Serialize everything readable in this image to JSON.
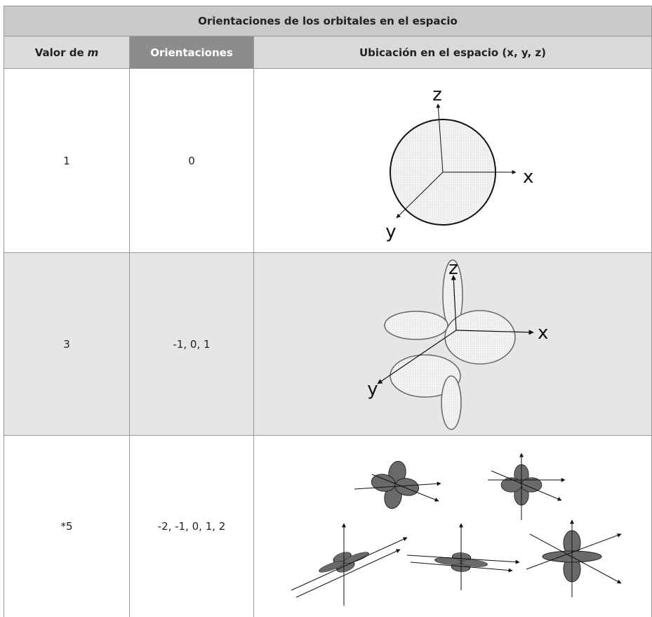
{
  "title": "Orientaciones de los orbitales en el espacio",
  "header": {
    "m_value": {
      "text": "Valor de",
      "italic": "m"
    },
    "orientations": "Orientaciones",
    "location": "Ubicación en el espacio (x, y, z)"
  },
  "rows": [
    {
      "m": "1",
      "orientations": "0",
      "axes": [
        "z",
        "x",
        "y"
      ]
    },
    {
      "m": "3",
      "orientations": "-1, 0, 1",
      "axes": [
        "z",
        "x",
        "y"
      ]
    },
    {
      "m": "*5",
      "orientations": "-2, -1, 0, 1, 2"
    }
  ]
}
